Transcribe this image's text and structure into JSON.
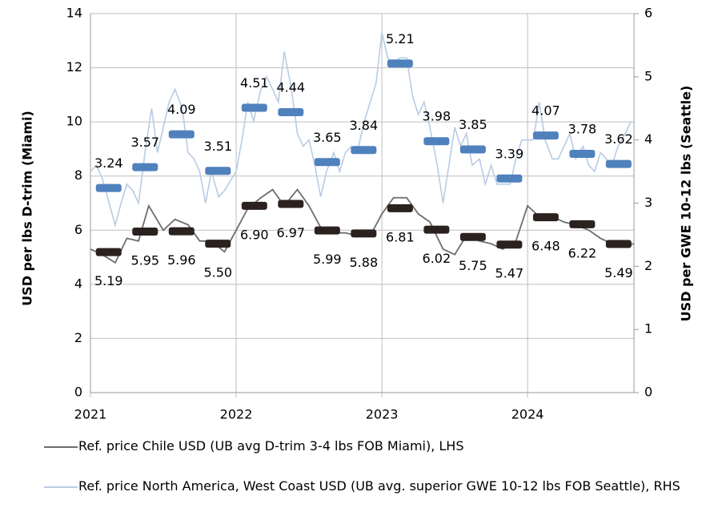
{
  "chart_data": {
    "type": "line",
    "xlim": [
      2021,
      2024.73
    ],
    "xticks": [
      2021,
      2022,
      2023,
      2024
    ],
    "ylim": [
      0,
      14
    ],
    "yticks": [
      0,
      2,
      4,
      6,
      8,
      10,
      12,
      14
    ],
    "y2lim": [
      0,
      6
    ],
    "y2ticks": [
      0,
      1,
      2,
      3,
      4,
      5,
      6
    ],
    "ylabel": "USD per lbs D-trim (Miami)",
    "y2label": "USD per GWE 10-12 lbs (Seattle)",
    "grid": true,
    "legend": "bottom",
    "series": [
      {
        "name": "Ref. price Chile USD (UB avg D-trim 3-4 lbs FOB Miami), LHS",
        "color": "#6d6d6d",
        "axis": "y",
        "x": [
          2021.0,
          2021.08,
          2021.17,
          2021.25,
          2021.33,
          2021.4,
          2021.5,
          2021.58,
          2021.67,
          2021.75,
          2021.83,
          2021.92,
          2022.0,
          2022.08,
          2022.17,
          2022.25,
          2022.33,
          2022.42,
          2022.5,
          2022.58,
          2022.67,
          2022.75,
          2022.83,
          2022.92,
          2023.0,
          2023.08,
          2023.17,
          2023.25,
          2023.33,
          2023.42,
          2023.5,
          2023.58,
          2023.67,
          2023.75,
          2023.83,
          2023.92,
          2024.0,
          2024.08,
          2024.17,
          2024.25,
          2024.33,
          2024.42,
          2024.5,
          2024.58,
          2024.67,
          2024.73
        ],
        "values": [
          5.3,
          5.1,
          4.8,
          5.7,
          5.6,
          6.9,
          6.0,
          6.4,
          6.2,
          5.6,
          5.6,
          5.2,
          6.0,
          6.8,
          7.2,
          7.5,
          6.9,
          7.5,
          6.9,
          6.1,
          5.9,
          5.9,
          5.8,
          5.8,
          6.6,
          7.2,
          7.2,
          6.6,
          6.3,
          5.3,
          5.1,
          5.8,
          5.6,
          5.5,
          5.3,
          5.6,
          6.9,
          6.5,
          6.5,
          6.3,
          6.2,
          6.0,
          5.7,
          5.5,
          5.4,
          5.5
        ]
      },
      {
        "name": "Ref. price North America, West Coast USD (UB avg. superior GWE 10-12 lbs FOB Seattle), RHS",
        "color": "#b8cce4",
        "axis": "y2",
        "x": [
          2021.0,
          2021.04,
          2021.08,
          2021.17,
          2021.21,
          2021.25,
          2021.29,
          2021.33,
          2021.38,
          2021.42,
          2021.46,
          2021.5,
          2021.54,
          2021.58,
          2021.63,
          2021.67,
          2021.71,
          2021.75,
          2021.79,
          2021.83,
          2021.88,
          2021.92,
          2022.0,
          2022.04,
          2022.08,
          2022.12,
          2022.17,
          2022.21,
          2022.25,
          2022.29,
          2022.33,
          2022.38,
          2022.42,
          2022.46,
          2022.5,
          2022.54,
          2022.58,
          2022.62,
          2022.67,
          2022.71,
          2022.75,
          2022.79,
          2022.83,
          2022.88,
          2022.92,
          2022.96,
          2023.0,
          2023.04,
          2023.08,
          2023.12,
          2023.17,
          2023.21,
          2023.25,
          2023.29,
          2023.33,
          2023.38,
          2023.42,
          2023.46,
          2023.5,
          2023.54,
          2023.58,
          2023.62,
          2023.67,
          2023.71,
          2023.75,
          2023.79,
          2023.83,
          2023.88,
          2023.92,
          2023.96,
          2024.0,
          2024.04,
          2024.08,
          2024.12,
          2024.17,
          2024.21,
          2024.25,
          2024.29,
          2024.33,
          2024.38,
          2024.42,
          2024.46,
          2024.5,
          2024.54,
          2024.58,
          2024.62,
          2024.67,
          2024.71
        ],
        "values": [
          3.5,
          3.6,
          3.4,
          2.65,
          3.0,
          3.3,
          3.2,
          3.0,
          3.9,
          4.5,
          3.8,
          4.2,
          4.6,
          4.8,
          4.5,
          3.8,
          3.7,
          3.5,
          3.0,
          3.5,
          3.1,
          3.2,
          3.5,
          4.0,
          4.6,
          4.3,
          4.8,
          5.0,
          4.8,
          4.6,
          5.4,
          4.8,
          4.1,
          3.9,
          4.0,
          3.6,
          3.1,
          3.5,
          3.8,
          3.5,
          3.8,
          3.9,
          3.8,
          4.3,
          4.6,
          4.9,
          5.7,
          5.3,
          5.2,
          5.3,
          5.3,
          4.7,
          4.4,
          4.6,
          4.2,
          3.6,
          3.0,
          3.6,
          4.2,
          3.9,
          4.1,
          3.6,
          3.7,
          3.3,
          3.6,
          3.3,
          3.3,
          3.3,
          3.7,
          4.0,
          4.0,
          4.0,
          4.6,
          4.0,
          3.7,
          3.7,
          3.9,
          4.1,
          3.7,
          3.9,
          3.6,
          3.5,
          3.8,
          3.7,
          3.6,
          3.9,
          4.1,
          4.3
        ]
      }
    ],
    "markers": [
      {
        "color": "#2b2220",
        "axis": "y",
        "label_side": "below",
        "x": [
          2021.125,
          2021.375,
          2021.625,
          2021.875,
          2022.125,
          2022.375,
          2022.625,
          2022.875,
          2023.125,
          2023.375,
          2023.625,
          2023.875,
          2024.125,
          2024.375,
          2024.625
        ],
        "values": [
          5.19,
          5.95,
          5.96,
          5.5,
          6.9,
          6.97,
          5.99,
          5.88,
          6.81,
          6.02,
          5.75,
          5.47,
          6.48,
          6.22,
          5.49
        ],
        "value_labels": [
          "5.19",
          "5.95",
          "5.96",
          "5.50",
          "6.90",
          "6.97",
          "5.99",
          "5.88",
          "6.81",
          "6.02",
          "5.75",
          "5.47",
          "6.48",
          "6.22",
          "5.49"
        ]
      },
      {
        "color": "#4f81bd",
        "axis": "y2",
        "label_side": "above",
        "x": [
          2021.125,
          2021.375,
          2021.625,
          2021.875,
          2022.125,
          2022.375,
          2022.625,
          2022.875,
          2023.125,
          2023.375,
          2023.625,
          2023.875,
          2024.125,
          2024.375,
          2024.625
        ],
        "values": [
          3.24,
          3.57,
          4.09,
          3.51,
          4.51,
          4.44,
          3.65,
          3.84,
          5.21,
          3.98,
          3.85,
          3.39,
          4.07,
          3.78,
          3.62
        ],
        "value_labels": [
          "3.24",
          "3.57",
          "4.09",
          "3.51",
          "4.51",
          "4.44",
          "3.65",
          "3.84",
          "5.21",
          "3.98",
          "3.85",
          "3.39",
          "4.07",
          "3.78",
          "3.62"
        ]
      }
    ]
  }
}
